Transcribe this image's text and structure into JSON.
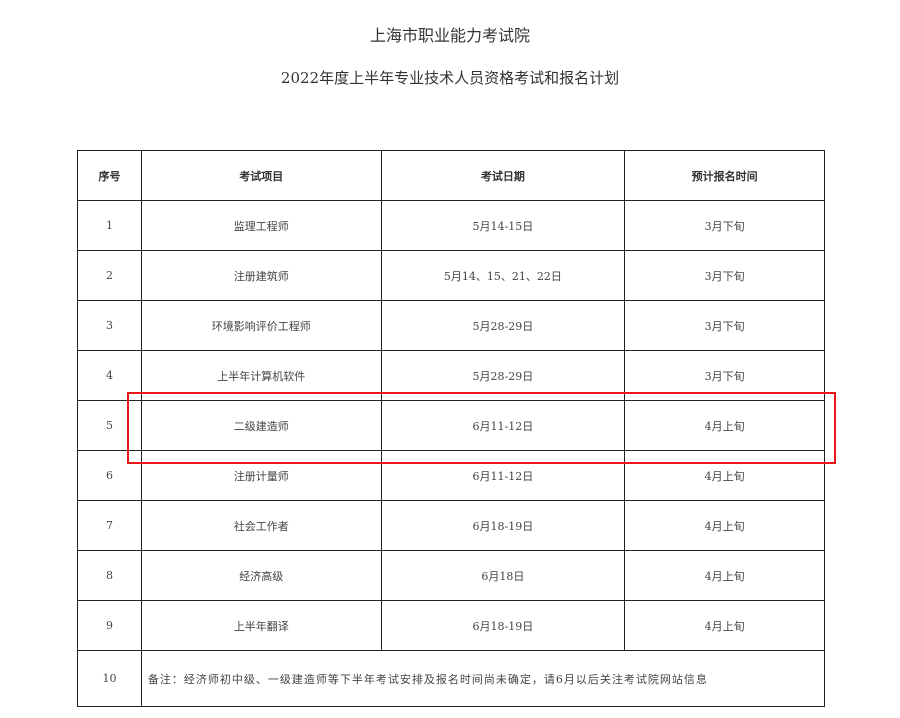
{
  "title": "上海市职业能力考试院",
  "subtitle": "2022年度上半年专业技术人员资格考试和报名计划",
  "headers": [
    "序号",
    "考试项目",
    "考试日期",
    "预计报名时间"
  ],
  "rows": [
    [
      "1",
      "监理工程师",
      "5月14-15日",
      "3月下旬"
    ],
    [
      "2",
      "注册建筑师",
      "5月14、15、21、22日",
      "3月下旬"
    ],
    [
      "3",
      "环境影响评价工程师",
      "5月28-29日",
      "3月下旬"
    ],
    [
      "4",
      "上半年计算机软件",
      "5月28-29日",
      "3月下旬"
    ],
    [
      "5",
      "二级建造师",
      "6月11-12日",
      "4月上旬"
    ],
    [
      "6",
      "注册计量师",
      "6月11-12日",
      "4月上旬"
    ],
    [
      "7",
      "社会工作者",
      "6月18-19日",
      "4月上旬"
    ],
    [
      "8",
      "经济高级",
      "6月18日",
      "4月上旬"
    ],
    [
      "9",
      "上半年翻译",
      "6月18-19日",
      "4月上旬"
    ]
  ],
  "note_row": {
    "index": "10",
    "text": "备注：经济师初中级、一级建造师等下半年考试安排及报名时间尚未确定，请6月以后关注考试院网站信息"
  },
  "highlight": {
    "row_index": "5",
    "color": "#e8151b"
  }
}
